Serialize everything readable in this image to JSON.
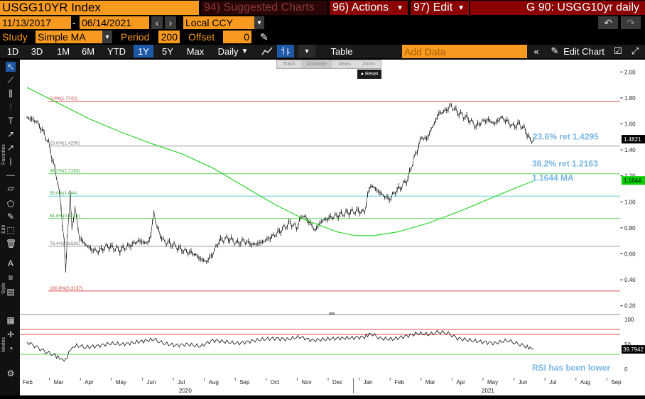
{
  "header": {
    "ticker": "USGG10YR Index",
    "suggested": "94) Suggested Charts",
    "actions": "96) Actions",
    "edit": "97) Edit",
    "title": "G 90: USGG10yr daily"
  },
  "controls": {
    "date_start": "11/13/2017",
    "date_sep": "-",
    "date_end": "06/14/2021",
    "currency": "Local CCY",
    "study_label": "Study",
    "study_value": "Simple MA",
    "period_label": "Period",
    "period_value": "200",
    "offset_label": "Offset",
    "offset_value": "0"
  },
  "toolbar": {
    "ranges": [
      "1D",
      "3D",
      "1M",
      "6M",
      "YTD",
      "1Y",
      "5Y",
      "Max"
    ],
    "selected_range": "1Y",
    "frequency": "Daily",
    "table": "Table",
    "add_data_placeholder": "Add Data",
    "edit_chart": "Edit Chart"
  },
  "chart_toolbar": {
    "track": "Track",
    "annotate": "Annotate",
    "news": "News",
    "zoom": "Zoom",
    "reset": "Reset"
  },
  "left_tabs": {
    "favorites": "Favorites",
    "edit": "Edit",
    "style": "Style",
    "modes": "Modes"
  },
  "colors": {
    "orange": "#f79a1f",
    "dark_red": "#8b0000",
    "fib_red": "#e05050",
    "fib_green": "#5fd35f",
    "fib_cyan": "#5fd3d3",
    "fib_grey": "#9a9a9a",
    "ma_green": "#2fd52f",
    "label_blue": "#79b7e6"
  },
  "chart_data": {
    "type": "line",
    "title": "",
    "x_labels": [
      "Feb",
      "Mar",
      "Apr",
      "May",
      "Jun",
      "Jul",
      "Aug",
      "Sep",
      "Oct",
      "Nov",
      "Dec",
      "Jan",
      "Feb",
      "Mar",
      "Apr",
      "May",
      "Jun",
      "Jul",
      "Aug",
      "Sep"
    ],
    "year_labels": [
      "2020",
      "2021"
    ],
    "y_ticks": [
      "2.00",
      "1.80",
      "1.60",
      "1.40",
      "1.20",
      "1.00",
      "0.80",
      "0.60",
      "0.40",
      "0.20"
    ],
    "ylim": [
      0.16,
      2.04
    ],
    "last_price": "1.4821",
    "ma_last": "1.1644",
    "fib_levels": [
      {
        "label": "0.0%(1.7742)",
        "value": 1.7742,
        "color": "red"
      },
      {
        "label": "23.6%(1.4295)",
        "value": 1.4295,
        "color": "grey"
      },
      {
        "label": "38.2%(1.2163)",
        "value": 1.2163,
        "color": "green"
      },
      {
        "label": "50.0%(1.044)",
        "value": 1.044,
        "color": "cyan"
      },
      {
        "label": "61.8%(0.8716)",
        "value": 0.8716,
        "color": "green"
      },
      {
        "label": "76.4%(0.6583)",
        "value": 0.6583,
        "color": "grey"
      },
      {
        "label": "100.0%(0.3137)",
        "value": 0.3137,
        "color": "red"
      }
    ],
    "annotations": [
      "23.6% ret 1.4295",
      "38.2% ret 1.2163",
      "1.1644 MA"
    ],
    "price_series": [
      {
        "m": 0.0,
        "v": 1.65
      },
      {
        "m": 0.3,
        "v": 1.62
      },
      {
        "m": 0.5,
        "v": 1.55
      },
      {
        "m": 0.7,
        "v": 1.45
      },
      {
        "m": 0.85,
        "v": 1.3
      },
      {
        "m": 1.0,
        "v": 1.15
      },
      {
        "m": 1.1,
        "v": 0.95
      },
      {
        "m": 1.2,
        "v": 0.7
      },
      {
        "m": 1.25,
        "v": 0.45
      },
      {
        "m": 1.3,
        "v": 0.75
      },
      {
        "m": 1.4,
        "v": 1.05
      },
      {
        "m": 1.45,
        "v": 0.8
      },
      {
        "m": 1.55,
        "v": 0.95
      },
      {
        "m": 1.7,
        "v": 0.72
      },
      {
        "m": 1.9,
        "v": 0.67
      },
      {
        "m": 2.1,
        "v": 0.63
      },
      {
        "m": 2.3,
        "v": 0.62
      },
      {
        "m": 2.6,
        "v": 0.66
      },
      {
        "m": 3.0,
        "v": 0.63
      },
      {
        "m": 3.3,
        "v": 0.66
      },
      {
        "m": 3.6,
        "v": 0.7
      },
      {
        "m": 3.9,
        "v": 0.68
      },
      {
        "m": 4.0,
        "v": 0.75
      },
      {
        "m": 4.1,
        "v": 0.92
      },
      {
        "m": 4.2,
        "v": 0.8
      },
      {
        "m": 4.4,
        "v": 0.7
      },
      {
        "m": 4.7,
        "v": 0.67
      },
      {
        "m": 5.0,
        "v": 0.63
      },
      {
        "m": 5.4,
        "v": 0.6
      },
      {
        "m": 5.6,
        "v": 0.56
      },
      {
        "m": 5.8,
        "v": 0.54
      },
      {
        "m": 6.0,
        "v": 0.6
      },
      {
        "m": 6.2,
        "v": 0.7
      },
      {
        "m": 6.5,
        "v": 0.72
      },
      {
        "m": 6.8,
        "v": 0.68
      },
      {
        "m": 7.0,
        "v": 0.7
      },
      {
        "m": 7.3,
        "v": 0.67
      },
      {
        "m": 7.6,
        "v": 0.69
      },
      {
        "m": 7.9,
        "v": 0.73
      },
      {
        "m": 8.2,
        "v": 0.78
      },
      {
        "m": 8.5,
        "v": 0.84
      },
      {
        "m": 8.7,
        "v": 0.8
      },
      {
        "m": 8.9,
        "v": 0.9
      },
      {
        "m": 9.1,
        "v": 0.85
      },
      {
        "m": 9.3,
        "v": 0.78
      },
      {
        "m": 9.5,
        "v": 0.85
      },
      {
        "m": 9.8,
        "v": 0.88
      },
      {
        "m": 10.1,
        "v": 0.9
      },
      {
        "m": 10.4,
        "v": 0.92
      },
      {
        "m": 10.7,
        "v": 0.93
      },
      {
        "m": 10.9,
        "v": 0.92
      },
      {
        "m": 11.0,
        "v": 1.05
      },
      {
        "m": 11.1,
        "v": 1.13
      },
      {
        "m": 11.3,
        "v": 1.09
      },
      {
        "m": 11.5,
        "v": 1.05
      },
      {
        "m": 11.7,
        "v": 1.02
      },
      {
        "m": 11.9,
        "v": 1.08
      },
      {
        "m": 12.1,
        "v": 1.12
      },
      {
        "m": 12.3,
        "v": 1.18
      },
      {
        "m": 12.45,
        "v": 1.3
      },
      {
        "m": 12.6,
        "v": 1.4
      },
      {
        "m": 12.75,
        "v": 1.5
      },
      {
        "m": 12.9,
        "v": 1.48
      },
      {
        "m": 13.1,
        "v": 1.58
      },
      {
        "m": 13.3,
        "v": 1.68
      },
      {
        "m": 13.5,
        "v": 1.7
      },
      {
        "m": 13.7,
        "v": 1.74
      },
      {
        "m": 13.9,
        "v": 1.69
      },
      {
        "m": 14.1,
        "v": 1.66
      },
      {
        "m": 14.3,
        "v": 1.63
      },
      {
        "m": 14.5,
        "v": 1.58
      },
      {
        "m": 14.7,
        "v": 1.62
      },
      {
        "m": 14.9,
        "v": 1.63
      },
      {
        "m": 15.1,
        "v": 1.6
      },
      {
        "m": 15.3,
        "v": 1.65
      },
      {
        "m": 15.5,
        "v": 1.62
      },
      {
        "m": 15.7,
        "v": 1.58
      },
      {
        "m": 15.9,
        "v": 1.6
      },
      {
        "m": 16.1,
        "v": 1.55
      },
      {
        "m": 16.25,
        "v": 1.47
      },
      {
        "m": 16.35,
        "v": 1.48
      }
    ],
    "ma_series": [
      {
        "m": 0.0,
        "v": 1.88
      },
      {
        "m": 1.0,
        "v": 1.76
      },
      {
        "m": 2.0,
        "v": 1.64
      },
      {
        "m": 3.0,
        "v": 1.54
      },
      {
        "m": 4.0,
        "v": 1.45
      },
      {
        "m": 5.0,
        "v": 1.37
      },
      {
        "m": 6.0,
        "v": 1.26
      },
      {
        "m": 7.0,
        "v": 1.12
      },
      {
        "m": 8.0,
        "v": 0.98
      },
      {
        "m": 9.0,
        "v": 0.86
      },
      {
        "m": 10.0,
        "v": 0.77
      },
      {
        "m": 10.6,
        "v": 0.74
      },
      {
        "m": 11.2,
        "v": 0.74
      },
      {
        "m": 12.0,
        "v": 0.77
      },
      {
        "m": 13.0,
        "v": 0.84
      },
      {
        "m": 14.0,
        "v": 0.93
      },
      {
        "m": 15.0,
        "v": 1.03
      },
      {
        "m": 15.8,
        "v": 1.11
      },
      {
        "m": 16.35,
        "v": 1.16
      }
    ],
    "rsi": {
      "ylim": [
        0,
        100
      ],
      "y_ticks": [
        "100",
        "50",
        "0"
      ],
      "last": "39.7942",
      "overbought_lines": [
        70,
        80
      ],
      "oversold_line": 30,
      "annotation": "RSI has been lower",
      "series": [
        {
          "m": 0.0,
          "v": 55
        },
        {
          "m": 0.3,
          "v": 45
        },
        {
          "m": 0.6,
          "v": 35
        },
        {
          "m": 0.9,
          "v": 28
        },
        {
          "m": 1.1,
          "v": 20
        },
        {
          "m": 1.25,
          "v": 18
        },
        {
          "m": 1.4,
          "v": 40
        },
        {
          "m": 1.6,
          "v": 48
        },
        {
          "m": 1.9,
          "v": 44
        },
        {
          "m": 2.3,
          "v": 47
        },
        {
          "m": 2.7,
          "v": 52
        },
        {
          "m": 3.1,
          "v": 50
        },
        {
          "m": 3.6,
          "v": 55
        },
        {
          "m": 4.1,
          "v": 60
        },
        {
          "m": 4.4,
          "v": 52
        },
        {
          "m": 4.8,
          "v": 48
        },
        {
          "m": 5.2,
          "v": 50
        },
        {
          "m": 5.6,
          "v": 46
        },
        {
          "m": 6.0,
          "v": 58
        },
        {
          "m": 6.4,
          "v": 55
        },
        {
          "m": 6.8,
          "v": 52
        },
        {
          "m": 7.2,
          "v": 56
        },
        {
          "m": 7.6,
          "v": 60
        },
        {
          "m": 8.0,
          "v": 62
        },
        {
          "m": 8.4,
          "v": 60
        },
        {
          "m": 8.8,
          "v": 65
        },
        {
          "m": 9.2,
          "v": 58
        },
        {
          "m": 9.6,
          "v": 60
        },
        {
          "m": 10.0,
          "v": 62
        },
        {
          "m": 10.5,
          "v": 63
        },
        {
          "m": 10.9,
          "v": 65
        },
        {
          "m": 11.1,
          "v": 72
        },
        {
          "m": 11.4,
          "v": 62
        },
        {
          "m": 11.8,
          "v": 60
        },
        {
          "m": 12.2,
          "v": 66
        },
        {
          "m": 12.6,
          "v": 72
        },
        {
          "m": 13.0,
          "v": 70
        },
        {
          "m": 13.3,
          "v": 75
        },
        {
          "m": 13.6,
          "v": 72
        },
        {
          "m": 13.9,
          "v": 62
        },
        {
          "m": 14.3,
          "v": 58
        },
        {
          "m": 14.7,
          "v": 55
        },
        {
          "m": 15.1,
          "v": 52
        },
        {
          "m": 15.5,
          "v": 58
        },
        {
          "m": 15.8,
          "v": 52
        },
        {
          "m": 16.1,
          "v": 46
        },
        {
          "m": 16.35,
          "v": 40
        }
      ]
    }
  }
}
